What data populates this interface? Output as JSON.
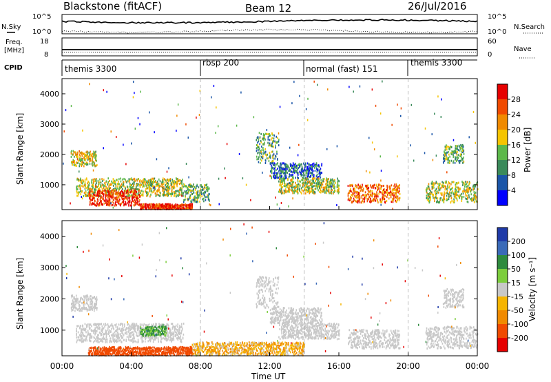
{
  "header": {
    "station": "Blackstone (fitACF)",
    "beam": "Beam 12",
    "date": "26/Jul/2016"
  },
  "noise_panel": {
    "left_label": "N.Sky",
    "right_label": "N.Search",
    "left_ticks": [
      "10^5",
      "10^0"
    ],
    "right_ticks": [
      "10^5",
      "10^0"
    ]
  },
  "freq_panel": {
    "left_label_1": "Freq.",
    "left_label_2": "[MHz]",
    "left_ticks": [
      "18",
      "8"
    ],
    "right_label": "Nave",
    "right_ticks": [
      "60",
      "0"
    ]
  },
  "cpid_panel": {
    "label": "CPID",
    "modes": [
      "themis 3300",
      "rbsp 200",
      "normal (fast) 151",
      "themis 3300"
    ]
  },
  "colors": {
    "power_scale": [
      "#0000ff",
      "#1a55a8",
      "#3a8a5a",
      "#5cb84a",
      "#f5c400",
      "#f08a00",
      "#f04a00",
      "#e60000"
    ],
    "velocity_scale": [
      "#1f3aa8",
      "#3a6ab8",
      "#2e8b3e",
      "#7ccd3c",
      "#c8c8c8",
      "#f5b400",
      "#f08a00",
      "#f04a00",
      "#e60000"
    ]
  },
  "power_colorbar": {
    "label": "Power [dB]",
    "ticks": [
      "28",
      "24",
      "20",
      "16",
      "12",
      "8",
      "4"
    ]
  },
  "velocity_colorbar": {
    "label": "Velocity [m s⁻¹]",
    "ticks": [
      "200",
      "100",
      "50",
      "15",
      "-15",
      "-50",
      "-100",
      "-200"
    ]
  },
  "chart_data": {
    "type": "heatmap",
    "x_ticks": [
      "00:00",
      "04:00",
      "08:00",
      "12:00",
      "16:00",
      "20:00",
      "00:00"
    ],
    "xlabel": "Time UT",
    "ylabel": "Slant Range [km]",
    "y_ticks": [
      "4000",
      "3000",
      "2000",
      "1000"
    ],
    "xlim_hours": [
      0,
      24
    ],
    "ylim_km": [
      180,
      4500
    ],
    "cpid_boundaries_hours": [
      8,
      14,
      20
    ],
    "power_echo_regions": [
      {
        "t0": 0.5,
        "t1": 2.0,
        "r0": 1600,
        "r1": 2100,
        "db": 18
      },
      {
        "t0": 0.8,
        "t1": 7.0,
        "r0": 600,
        "r1": 1200,
        "db": 16
      },
      {
        "t0": 1.5,
        "t1": 4.5,
        "r0": 300,
        "r1": 800,
        "db": 28
      },
      {
        "t0": 4.5,
        "t1": 7.5,
        "r0": 180,
        "r1": 350,
        "db": 28
      },
      {
        "t0": 7.0,
        "t1": 8.5,
        "r0": 400,
        "r1": 1000,
        "db": 12
      },
      {
        "t0": 11.2,
        "t1": 12.5,
        "r0": 1700,
        "r1": 2700,
        "db": 12
      },
      {
        "t0": 12.0,
        "t1": 15.0,
        "r0": 1200,
        "r1": 1700,
        "db": 8
      },
      {
        "t0": 12.5,
        "t1": 16.0,
        "r0": 700,
        "r1": 1200,
        "db": 16
      },
      {
        "t0": 16.5,
        "t1": 19.5,
        "r0": 400,
        "r1": 1000,
        "db": 24
      },
      {
        "t0": 22.0,
        "t1": 23.2,
        "r0": 1700,
        "r1": 2300,
        "db": 12
      },
      {
        "t0": 21.0,
        "t1": 24.0,
        "r0": 400,
        "r1": 1100,
        "db": 16
      }
    ],
    "velocity_echo_regions": [
      {
        "t0": 0.5,
        "t1": 2.0,
        "r0": 1600,
        "r1": 2100,
        "v": 0
      },
      {
        "t0": 0.8,
        "t1": 7.0,
        "r0": 600,
        "r1": 1200,
        "v": 0
      },
      {
        "t0": 4.5,
        "t1": 6.0,
        "r0": 800,
        "r1": 1100,
        "v": 60
      },
      {
        "t0": 1.5,
        "t1": 7.5,
        "r0": 180,
        "r1": 450,
        "v": -150
      },
      {
        "t0": 7.5,
        "t1": 14.0,
        "r0": 180,
        "r1": 600,
        "v": -40
      },
      {
        "t0": 11.2,
        "t1": 12.5,
        "r0": 1700,
        "r1": 2700,
        "v": 0
      },
      {
        "t0": 12.0,
        "t1": 15.0,
        "r0": 1200,
        "r1": 1700,
        "v": 0
      },
      {
        "t0": 12.5,
        "t1": 16.0,
        "r0": 700,
        "r1": 1200,
        "v": 0
      },
      {
        "t0": 16.5,
        "t1": 19.5,
        "r0": 400,
        "r1": 1000,
        "v": 0
      },
      {
        "t0": 22.0,
        "t1": 23.2,
        "r0": 1700,
        "r1": 2300,
        "v": 0
      },
      {
        "t0": 21.0,
        "t1": 24.0,
        "r0": 400,
        "r1": 1100,
        "v": 0
      }
    ]
  }
}
